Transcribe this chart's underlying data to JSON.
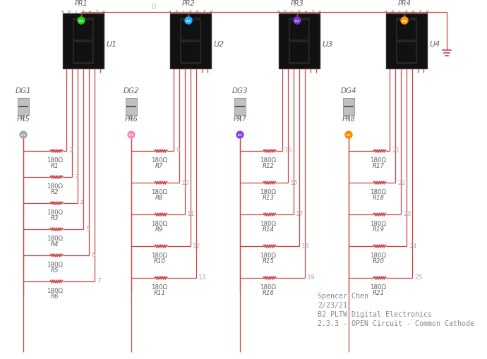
{
  "bg_color": "#ffffff",
  "wire_color": "#cc4444",
  "text_color": "#888888",
  "label_color": "#606060",
  "seg_bg": "#111111",
  "seg_border": "#2a2a2a",
  "seg_off": "#252525",
  "node_colors": [
    "#22cc22",
    "#22aaff",
    "#7733cc",
    "#ff9900"
  ],
  "pr_node_colors": [
    "#aaaaaa",
    "#ff88bb",
    "#8844dd",
    "#ff8800"
  ],
  "pr_labels": [
    "PR1",
    "PR2",
    "PR3",
    "PR4"
  ],
  "u_labels": [
    "U1",
    "U2",
    "U3",
    "U4"
  ],
  "dg_labels": [
    "DG1",
    "DG2",
    "DG3",
    "DG4"
  ],
  "pr_sw_labels": [
    "PR5",
    "PR6",
    "PR7",
    "PR8"
  ],
  "r_groups": [
    [
      "R1",
      "R2",
      "R3",
      "R4",
      "R5",
      "R6"
    ],
    [
      "R7",
      "R8",
      "R9",
      "R10",
      "R11"
    ],
    [
      "R12",
      "R13",
      "R14",
      "R15",
      "R16"
    ],
    [
      "R17",
      "R18",
      "R19",
      "R20",
      "R21"
    ]
  ],
  "wire_nums": [
    [
      "2",
      "3",
      "4",
      "5",
      "6",
      "7"
    ],
    [
      "9",
      "10",
      "11",
      "12",
      "13"
    ],
    [
      "15",
      "16",
      "17",
      "18",
      "19"
    ],
    [
      "21",
      "22",
      "23",
      "24",
      "25"
    ]
  ],
  "resistor_value": "180Ω",
  "zero_label": "0",
  "annotation_lines": [
    "Spencer Chen",
    "2/23/21",
    "B2 PLTW Digital Electronics",
    "2.3.3 - OPEN Circuit - Common Cathode"
  ]
}
